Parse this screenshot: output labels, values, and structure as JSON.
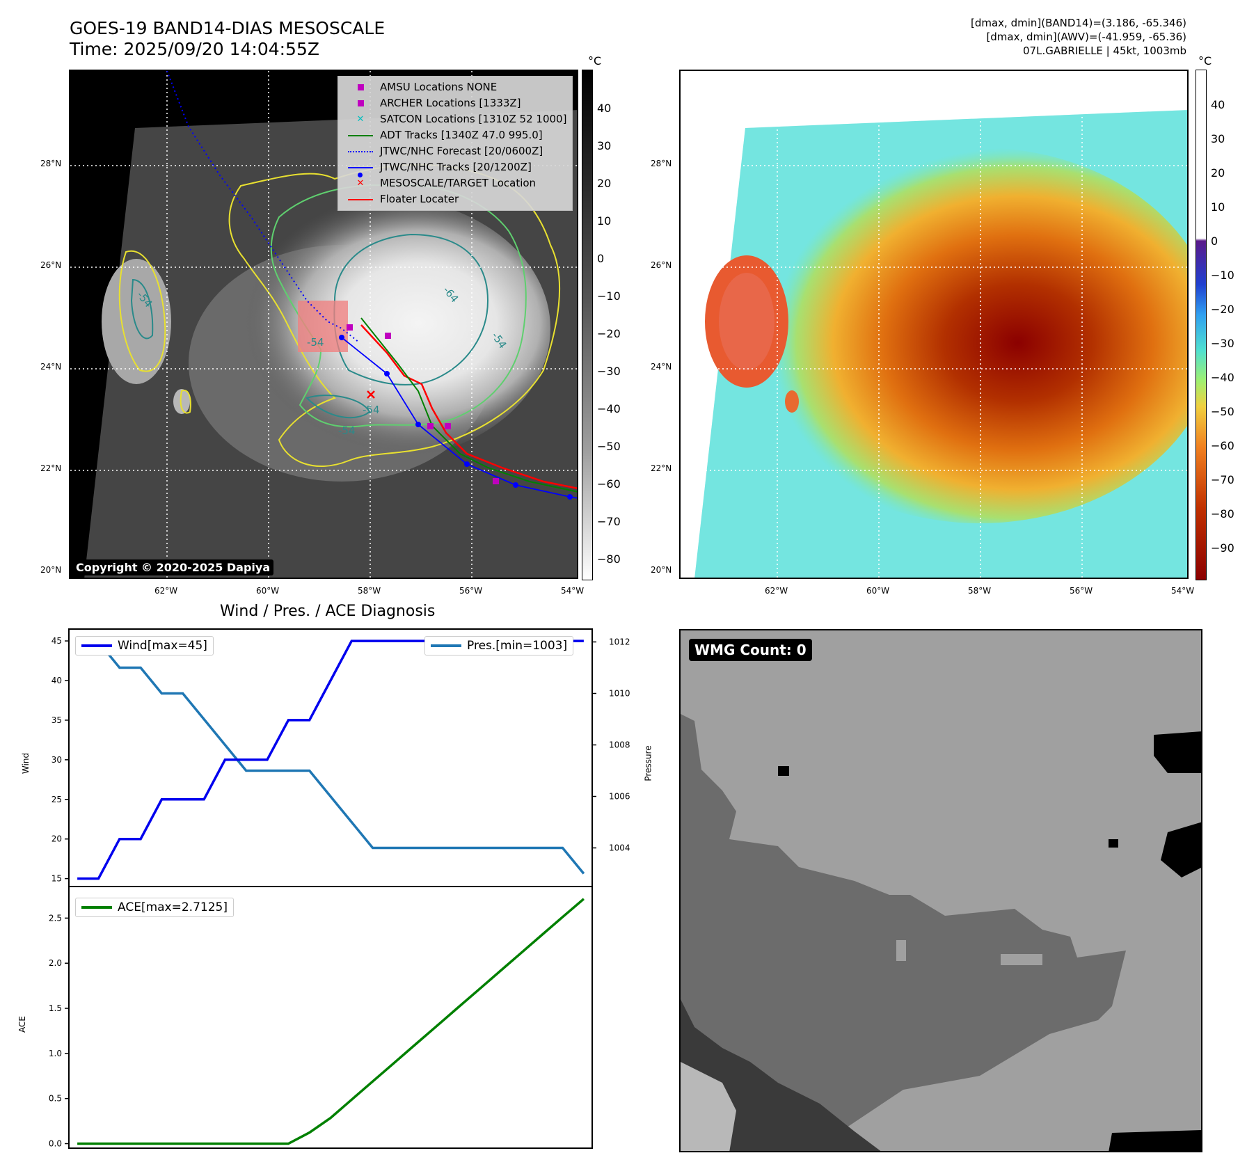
{
  "header": {
    "title_line1": "GOES-19 BAND14-DIAS MESOSCALE",
    "title_line2": "Time: 2025/09/20 14:04:55Z",
    "info_line1": "[dmax, dmin](BAND14)=(3.186, -65.346)",
    "info_line2": "[dmax, dmin](AWV)=(-41.959, -65.36)",
    "info_line3": "07L.GABRIELLE | 45kt, 1003mb"
  },
  "map_panel": {
    "lat_labels": [
      "28°N",
      "26°N",
      "24°N",
      "22°N",
      "20°N"
    ],
    "lon_labels": [
      "62°W",
      "60°W",
      "58°W",
      "56°W",
      "54°W"
    ],
    "contour_labels": [
      "-64",
      "-54",
      "-54",
      "-54",
      "-54",
      "-54"
    ],
    "copyright": "Copyright © 2020-2025 Dapiya",
    "legend": [
      {
        "label": "AMSU Locations NONE",
        "symbol": "square",
        "color": "#bf00bf"
      },
      {
        "label": "ARCHER Locations [1333Z]",
        "symbol": "square",
        "color": "#bf00bf"
      },
      {
        "label": "SATCON Locations [1310Z 52 1000]",
        "symbol": "x",
        "color": "#00bfbf"
      },
      {
        "label": "ADT Tracks [1340Z 47.0 995.0]",
        "symbol": "line",
        "color": "#008000"
      },
      {
        "label": "JTWC/NHC Forecast [20/0600Z]",
        "symbol": "dotted",
        "color": "#0000ff"
      },
      {
        "label": "JTWC/NHC Tracks [20/1200Z]",
        "symbol": "line-dot",
        "color": "#0000ff"
      },
      {
        "label": "MESOSCALE/TARGET Location",
        "symbol": "x",
        "color": "#ff0000"
      },
      {
        "label": "Floater Locater",
        "symbol": "line",
        "color": "#ff0000"
      }
    ],
    "colorbar_unit": "°C",
    "colorbar_ticks": [
      "40",
      "30",
      "20",
      "10",
      "0",
      "−10",
      "−20",
      "−30",
      "−40",
      "−50",
      "−60",
      "−70",
      "−80"
    ]
  },
  "awv_panel": {
    "lat_labels": [
      "28°N",
      "26°N",
      "24°N",
      "22°N",
      "20°N"
    ],
    "lon_labels": [
      "62°W",
      "60°W",
      "58°W",
      "56°W",
      "54°W"
    ],
    "colorbar_unit": "°C",
    "colorbar_ticks": [
      "40",
      "30",
      "20",
      "10",
      "0",
      "−10",
      "−20",
      "−30",
      "−40",
      "−50",
      "−60",
      "−70",
      "−80",
      "−90"
    ]
  },
  "wmg_panel": {
    "label": "WMG Count: 0"
  },
  "colors": {
    "wind": "#0000ee",
    "pressure": "#1f77b4",
    "ace": "#008000",
    "contour_yellow": "#e8e030",
    "contour_green": "#5fcf6f",
    "contour_teal": "#2a8a8a"
  },
  "chart_data": [
    {
      "type": "line",
      "title": "Wind / Pres. / ACE Diagnosis",
      "ylabel": "Wind",
      "ylabel_right": "Pressure",
      "x": [
        0,
        1,
        2,
        3,
        4,
        5,
        6,
        7,
        8,
        9,
        10,
        11,
        12,
        13,
        14,
        15,
        16,
        17,
        18,
        19,
        20,
        21,
        22,
        23,
        24
      ],
      "ylim": [
        14.0,
        46.5
      ],
      "ylim_right": [
        1002.5,
        1012.5
      ],
      "yticks": [
        "15",
        "20",
        "25",
        "30",
        "35",
        "40",
        "45"
      ],
      "yticks_right": [
        "1004",
        "1006",
        "1008",
        "1010",
        "1012"
      ],
      "series": [
        {
          "name": "Wind[max=45]",
          "axis": "left",
          "values": [
            15,
            15,
            20,
            20,
            25,
            25,
            25,
            30,
            30,
            30,
            35,
            35,
            40,
            45,
            45,
            45,
            45,
            45,
            45,
            45,
            45,
            45,
            45,
            45,
            45
          ]
        },
        {
          "name": "Pres.[min=1003]",
          "axis": "right",
          "values": [
            1012,
            1012,
            1011,
            1011,
            1010,
            1010,
            1009,
            1008,
            1007,
            1007,
            1007,
            1007,
            1006,
            1005,
            1004,
            1004,
            1004,
            1004,
            1004,
            1004,
            1004,
            1004,
            1004,
            1004,
            1003
          ]
        }
      ]
    },
    {
      "type": "line",
      "ylabel": "ACE",
      "x": [
        0,
        1,
        2,
        3,
        4,
        5,
        6,
        7,
        8,
        9,
        10,
        11,
        12,
        13,
        14,
        15,
        16,
        17,
        18,
        19,
        20,
        21,
        22,
        23,
        24
      ],
      "ylim": [
        -0.05,
        2.85
      ],
      "yticks": [
        "0.0",
        "0.5",
        "1.0",
        "1.5",
        "2.0",
        "2.5"
      ],
      "series": [
        {
          "name": "ACE[max=2.7125]",
          "values": [
            0,
            0,
            0,
            0,
            0,
            0,
            0,
            0,
            0,
            0,
            0,
            0.1225,
            0.285,
            0.4875,
            0.69,
            0.8925,
            1.095,
            1.2975,
            1.5,
            1.7025,
            1.905,
            2.1075,
            2.31,
            2.5125,
            2.7125
          ]
        }
      ]
    }
  ]
}
